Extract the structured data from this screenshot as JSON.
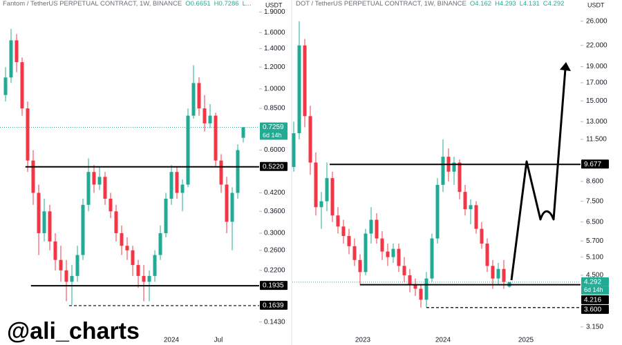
{
  "watermark": "@ali_charts",
  "chart_data": [
    {
      "type": "candlestick",
      "title": "Fantom / TetherUS PERPETUAL CONTRACT, 1W, BINANCE",
      "header_values": [
        "O0.6651",
        "H0.7286",
        "L..."
      ],
      "unit": "USDT",
      "log_scale": true,
      "up_color": "#22ab94",
      "down_color": "#f23645",
      "ylim": [
        0.118,
        2.1
      ],
      "yticks": [
        {
          "value": 1.9,
          "label": "1.9000"
        },
        {
          "value": 1.6,
          "label": "1.6000"
        },
        {
          "value": 1.4,
          "label": "1.4000"
        },
        {
          "value": 1.2,
          "label": "1.2000"
        },
        {
          "value": 1.0,
          "label": "1.0000"
        },
        {
          "value": 0.85,
          "label": "0.8500"
        },
        {
          "value": 0.6,
          "label": "0.6000"
        },
        {
          "value": 0.42,
          "label": "0.4200"
        },
        {
          "value": 0.36,
          "label": "0.3600"
        },
        {
          "value": 0.3,
          "label": "0.3000"
        },
        {
          "value": 0.26,
          "label": "0.2600"
        },
        {
          "value": 0.22,
          "label": "0.2200"
        },
        {
          "value": 0.143,
          "label": "0.1430"
        }
      ],
      "xticks": [
        {
          "value": 30,
          "label": "2024"
        },
        {
          "value": 38.5,
          "label": "Jul"
        }
      ],
      "ohlc": [
        [
          0.95,
          1.2,
          0.9,
          1.1
        ],
        [
          1.1,
          1.65,
          1.05,
          1.5
        ],
        [
          1.5,
          1.58,
          1.15,
          1.25
        ],
        [
          1.25,
          1.3,
          0.8,
          0.85
        ],
        [
          0.85,
          0.9,
          0.5,
          0.55
        ],
        [
          0.55,
          0.6,
          0.38,
          0.42
        ],
        [
          0.42,
          0.45,
          0.25,
          0.3
        ],
        [
          0.3,
          0.4,
          0.28,
          0.36
        ],
        [
          0.36,
          0.38,
          0.26,
          0.28
        ],
        [
          0.28,
          0.3,
          0.22,
          0.24
        ],
        [
          0.24,
          0.27,
          0.2,
          0.22
        ],
        [
          0.22,
          0.24,
          0.17,
          0.2
        ],
        [
          0.2,
          0.23,
          0.165,
          0.21
        ],
        [
          0.21,
          0.27,
          0.2,
          0.25
        ],
        [
          0.25,
          0.4,
          0.24,
          0.38
        ],
        [
          0.38,
          0.56,
          0.36,
          0.5
        ],
        [
          0.5,
          0.53,
          0.42,
          0.45
        ],
        [
          0.45,
          0.52,
          0.43,
          0.48
        ],
        [
          0.48,
          0.5,
          0.38,
          0.4
        ],
        [
          0.4,
          0.42,
          0.34,
          0.36
        ],
        [
          0.36,
          0.38,
          0.28,
          0.3
        ],
        [
          0.3,
          0.32,
          0.25,
          0.27
        ],
        [
          0.27,
          0.29,
          0.24,
          0.26
        ],
        [
          0.26,
          0.27,
          0.21,
          0.23
        ],
        [
          0.23,
          0.24,
          0.19,
          0.21
        ],
        [
          0.21,
          0.23,
          0.17,
          0.2
        ],
        [
          0.2,
          0.22,
          0.17,
          0.21
        ],
        [
          0.21,
          0.26,
          0.2,
          0.25
        ],
        [
          0.25,
          0.32,
          0.24,
          0.3
        ],
        [
          0.3,
          0.42,
          0.29,
          0.4
        ],
        [
          0.4,
          0.53,
          0.38,
          0.5
        ],
        [
          0.5,
          0.52,
          0.4,
          0.42
        ],
        [
          0.42,
          0.47,
          0.36,
          0.45
        ],
        [
          0.45,
          0.85,
          0.44,
          0.8
        ],
        [
          0.8,
          1.22,
          0.78,
          1.05
        ],
        [
          1.05,
          1.1,
          0.8,
          0.85
        ],
        [
          0.85,
          0.95,
          0.7,
          0.75
        ],
        [
          0.75,
          0.88,
          0.72,
          0.8
        ],
        [
          0.8,
          0.82,
          0.52,
          0.55
        ],
        [
          0.55,
          0.58,
          0.42,
          0.45
        ],
        [
          0.45,
          0.48,
          0.3,
          0.33
        ],
        [
          0.33,
          0.44,
          0.26,
          0.42
        ],
        [
          0.42,
          0.63,
          0.4,
          0.6
        ],
        [
          0.6651,
          0.7286,
          0.64,
          0.7259
        ]
      ],
      "levels": [
        {
          "value": 0.522,
          "style": "solid",
          "from_index": 3.6
        },
        {
          "value": 0.1935,
          "style": "solid",
          "from_index": 4.6
        },
        {
          "value": 0.1639,
          "style": "dashed",
          "from_index": 11.5
        }
      ],
      "current_price": 0.7259,
      "tags": [
        {
          "value": 0.7259,
          "label": "0.7259",
          "color": "#22ab94",
          "sub": "6d 14h"
        },
        {
          "value": 0.522,
          "label": "0.5220",
          "color": "#000000"
        },
        {
          "value": 0.1935,
          "label": "0.1935",
          "color": "#000000"
        },
        {
          "value": 0.1639,
          "label": "0.1639",
          "color": "#000000"
        }
      ]
    },
    {
      "type": "candlestick",
      "title": "DOT / TetherUS PERPETUAL CONTRACT, 1W, BINANCE",
      "header_values": [
        "O4.162",
        "H4.293",
        "L4.131",
        "C4.292"
      ],
      "unit": "USDT",
      "log_scale": true,
      "up_color": "#22ab94",
      "down_color": "#f23645",
      "ylim": [
        2.78,
        30.1
      ],
      "yticks": [
        {
          "value": 26,
          "label": "26.000"
        },
        {
          "value": 22,
          "label": "22.000"
        },
        {
          "value": 19,
          "label": "19.000"
        },
        {
          "value": 17,
          "label": "17.000"
        },
        {
          "value": 15,
          "label": "15.000"
        },
        {
          "value": 13,
          "label": "13.000"
        },
        {
          "value": 11.5,
          "label": "11.500"
        },
        {
          "value": 8.6,
          "label": "8.600"
        },
        {
          "value": 7.5,
          "label": "7.500"
        },
        {
          "value": 6.5,
          "label": "6.500"
        },
        {
          "value": 5.7,
          "label": "5.700"
        },
        {
          "value": 5.1,
          "label": "5.100"
        },
        {
          "value": 4.5,
          "label": "4.500"
        },
        {
          "value": 3.15,
          "label": "3.150"
        }
      ],
      "xticks": [
        {
          "value": 12.5,
          "label": "2023"
        },
        {
          "value": 27,
          "label": "2024"
        },
        {
          "value": 42,
          "label": "2025"
        }
      ],
      "ohlc": [
        [
          9.5,
          13,
          9.2,
          12
        ],
        [
          12,
          26,
          11.5,
          22
        ],
        [
          22,
          23,
          12.5,
          13.5
        ],
        [
          13.5,
          14.5,
          9,
          9.8
        ],
        [
          9.8,
          10.5,
          6.8,
          7.2
        ],
        [
          7.2,
          8,
          6.2,
          7.5
        ],
        [
          7.5,
          9.8,
          7,
          8.8
        ],
        [
          8.8,
          9.2,
          6.5,
          6.8
        ],
        [
          6.8,
          7.2,
          6,
          6.3
        ],
        [
          6.3,
          6.6,
          5.6,
          5.9
        ],
        [
          5.9,
          6.2,
          5.2,
          5.5
        ],
        [
          5.5,
          5.8,
          4.8,
          5
        ],
        [
          5,
          5.2,
          4.2,
          4.6
        ],
        [
          4.6,
          6.2,
          4.5,
          6
        ],
        [
          6,
          7.2,
          5.6,
          6.6
        ],
        [
          6.6,
          6.9,
          5.6,
          5.8
        ],
        [
          5.8,
          6.1,
          5,
          5.3
        ],
        [
          5.3,
          5.6,
          4.8,
          5.1
        ],
        [
          5.1,
          5.6,
          4.9,
          5.4
        ],
        [
          5.4,
          5.6,
          4.6,
          4.8
        ],
        [
          4.8,
          5.1,
          4.3,
          4.5
        ],
        [
          4.5,
          4.7,
          4,
          4.2
        ],
        [
          4.2,
          4.4,
          3.9,
          4.1
        ],
        [
          4.1,
          4.2,
          3.6,
          3.8
        ],
        [
          3.8,
          4.6,
          3.6,
          4.4
        ],
        [
          4.4,
          6,
          4.3,
          5.8
        ],
        [
          5.8,
          8.8,
          5.6,
          8.4
        ],
        [
          8.4,
          11.5,
          8,
          10.2
        ],
        [
          10.2,
          10.8,
          8.6,
          9.2
        ],
        [
          9.2,
          10.2,
          8.4,
          9.8
        ],
        [
          9.8,
          10,
          7.6,
          8
        ],
        [
          8,
          8.4,
          6.8,
          7.1
        ],
        [
          7.1,
          7.6,
          6.4,
          7.3
        ],
        [
          7.3,
          7.5,
          6,
          6.2
        ],
        [
          6.2,
          6.5,
          5.4,
          5.6
        ],
        [
          5.6,
          5.8,
          4.6,
          4.8
        ],
        [
          4.8,
          5,
          4.1,
          4.4
        ],
        [
          4.4,
          4.9,
          4.2,
          4.7
        ],
        [
          4.7,
          5,
          4.1,
          4.3
        ],
        [
          4.162,
          4.293,
          4.131,
          4.292
        ]
      ],
      "levels": [
        {
          "value": 9.677,
          "style": "solid",
          "from_index": 6.5
        },
        {
          "value": 4.216,
          "style": "solid",
          "from_index": 12
        },
        {
          "value": 3.6,
          "style": "dashed",
          "from_index": 24
        }
      ],
      "current_price": 4.292,
      "tags": [
        {
          "value": 9.677,
          "label": "9.677",
          "color": "#000000"
        },
        {
          "value": 4.292,
          "label": "4.292",
          "color": "#22ab94",
          "sub": "6d 14h"
        },
        {
          "value": 4.216,
          "label": "4.216",
          "color": "#000000"
        },
        {
          "value": 3.6,
          "label": "3.600",
          "color": "#000000"
        }
      ]
    }
  ]
}
